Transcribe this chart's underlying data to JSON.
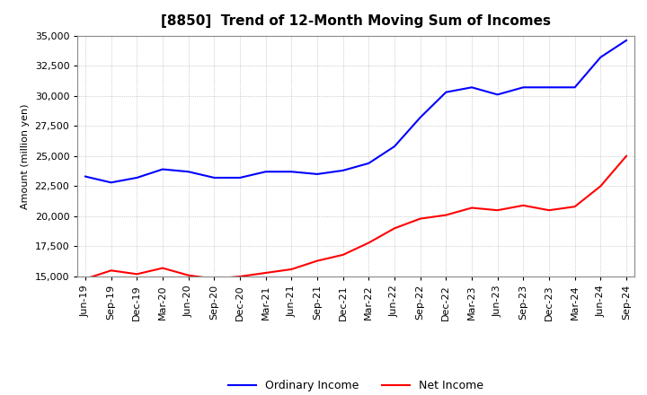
{
  "title": "[8850]  Trend of 12-Month Moving Sum of Incomes",
  "ylabel": "Amount (million yen)",
  "ylim": [
    15000,
    35000
  ],
  "yticks": [
    15000,
    17500,
    20000,
    22500,
    25000,
    27500,
    30000,
    32500,
    35000
  ],
  "x_labels": [
    "Jun-19",
    "Sep-19",
    "Dec-19",
    "Mar-20",
    "Jun-20",
    "Sep-20",
    "Dec-20",
    "Mar-21",
    "Jun-21",
    "Sep-21",
    "Dec-21",
    "Mar-22",
    "Jun-22",
    "Sep-22",
    "Dec-22",
    "Mar-23",
    "Jun-23",
    "Sep-23",
    "Dec-23",
    "Mar-24",
    "Jun-24",
    "Sep-24"
  ],
  "ordinary_income": [
    23300,
    22800,
    23200,
    23900,
    23700,
    23200,
    23200,
    23700,
    23700,
    23500,
    23800,
    24400,
    25800,
    28200,
    30300,
    30700,
    30100,
    30700,
    30700,
    30700,
    33200,
    34600
  ],
  "net_income": [
    14800,
    15500,
    15200,
    15700,
    15100,
    14800,
    15000,
    15300,
    15600,
    16300,
    16800,
    17800,
    19000,
    19800,
    20100,
    20700,
    20500,
    20900,
    20500,
    20800,
    22500,
    25000
  ],
  "ordinary_color": "#0000FF",
  "net_color": "#FF0000",
  "grid_color": "#AAAAAA",
  "background_color": "#FFFFFF",
  "title_fontsize": 11,
  "label_fontsize": 8,
  "legend_fontsize": 9,
  "linewidth": 1.5
}
